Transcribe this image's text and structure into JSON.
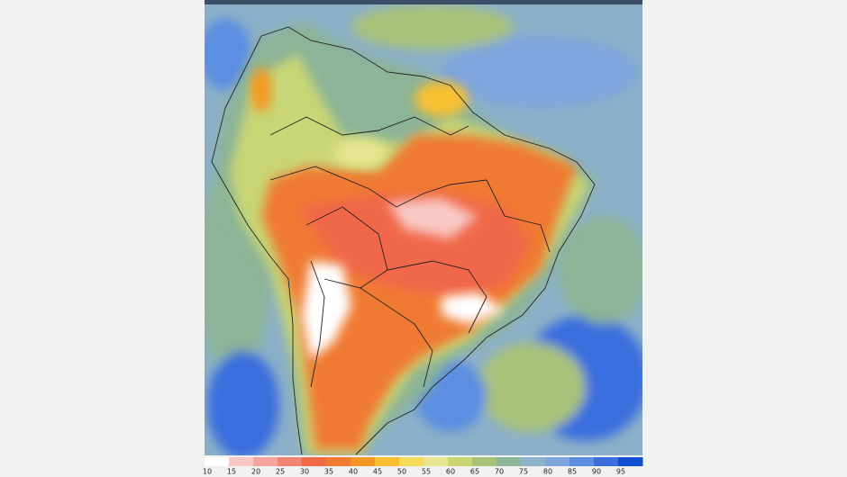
{
  "legend": {
    "labels": [
      10,
      15,
      20,
      25,
      30,
      35,
      40,
      45,
      50,
      55,
      60,
      65,
      70,
      75,
      80,
      85,
      90,
      95
    ],
    "colors": [
      "#ffffff",
      "#f9c8c4",
      "#f4a4a0",
      "#f08470",
      "#f06848",
      "#f07a30",
      "#f49a24",
      "#f8c030",
      "#f2dc5a",
      "#e6e690",
      "#c8d674",
      "#a8c27a",
      "#8cb496",
      "#8cb4c8",
      "#7ea6dc",
      "#5c8ee2",
      "#3a6ede",
      "#0f4fd0"
    ]
  }
}
